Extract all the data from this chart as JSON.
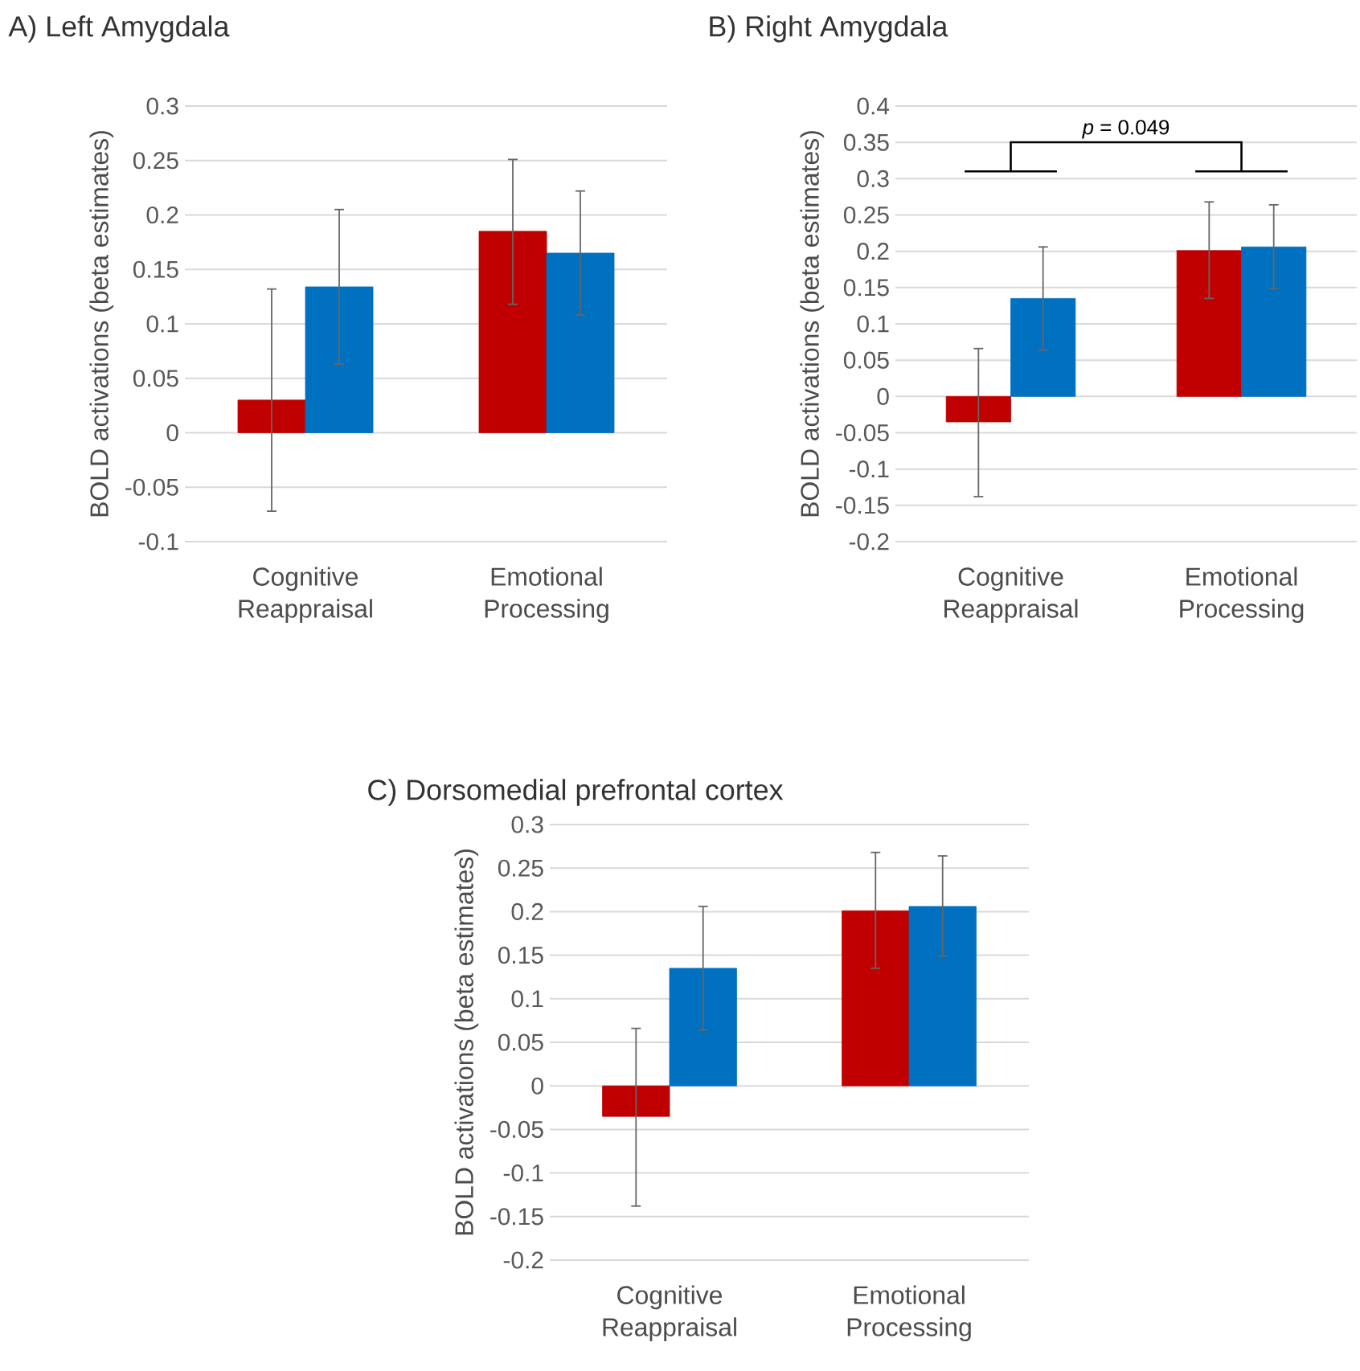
{
  "chart_data": [
    {
      "type": "bar",
      "title": "A) Left Amygdala",
      "ylabel": "BOLD activations (beta estimates)",
      "categories": [
        "Cognitive Reappraisal",
        "Emotional Processing"
      ],
      "series": [
        {
          "color": "#c00000",
          "values": [
            0.03,
            0.185
          ],
          "errors": [
            [
              -0.072,
              0.132
            ],
            [
              0.118,
              0.251
            ]
          ]
        },
        {
          "color": "#0070c0",
          "values": [
            0.134,
            0.165
          ],
          "errors": [
            [
              0.063,
              0.205
            ],
            [
              0.108,
              0.222
            ]
          ]
        }
      ],
      "ylim": [
        -0.1,
        0.3
      ],
      "yticks": [
        -0.1,
        -0.05,
        0,
        0.05,
        0.1,
        0.15,
        0.2,
        0.25,
        0.3
      ],
      "grid": "y"
    },
    {
      "type": "bar",
      "title": "B) Right Amygdala",
      "ylabel": "BOLD activations (beta estimates)",
      "categories": [
        "Cognitive Reappraisal",
        "Emotional Processing"
      ],
      "series": [
        {
          "color": "#c00000",
          "values": [
            -0.035,
            0.201
          ],
          "errors": [
            [
              -0.138,
              0.066
            ],
            [
              0.135,
              0.268
            ]
          ]
        },
        {
          "color": "#0070c0",
          "values": [
            0.135,
            0.206
          ],
          "errors": [
            [
              0.064,
              0.206
            ],
            [
              0.149,
              0.264
            ]
          ]
        }
      ],
      "ylim": [
        -0.2,
        0.4
      ],
      "yticks": [
        -0.2,
        -0.15,
        -0.1,
        -0.05,
        0,
        0.05,
        0.1,
        0.15,
        0.2,
        0.25,
        0.3,
        0.35,
        0.4
      ],
      "grid": "y",
      "annotations": [
        "*p* = 0.049"
      ]
    },
    {
      "type": "bar",
      "title": "C) Dorsomedial prefrontal cortex",
      "ylabel": "BOLD activations (beta estimates)",
      "categories": [
        "Cognitive Reappraisal",
        "Emotional Processing"
      ],
      "series": [
        {
          "color": "#c00000",
          "values": [
            -0.035,
            0.201
          ],
          "errors": [
            [
              -0.138,
              0.066
            ],
            [
              0.135,
              0.268
            ]
          ]
        },
        {
          "color": "#0070c0",
          "values": [
            0.135,
            0.206
          ],
          "errors": [
            [
              0.064,
              0.206
            ],
            [
              0.149,
              0.264
            ]
          ]
        }
      ],
      "ylim": [
        -0.2,
        0.3
      ],
      "yticks": [
        -0.2,
        -0.15,
        -0.1,
        -0.05,
        0,
        0.05,
        0.1,
        0.15,
        0.2,
        0.25,
        0.3
      ],
      "grid": "y"
    }
  ]
}
